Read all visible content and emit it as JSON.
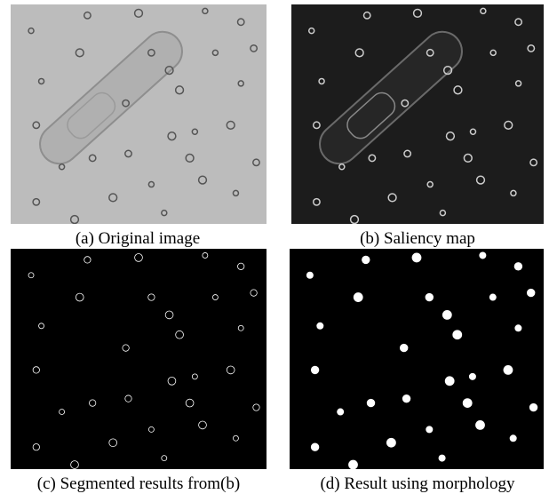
{
  "figure": {
    "panels": [
      {
        "caption": "(a) Original image"
      },
      {
        "caption": "(b) Saliency map"
      },
      {
        "caption": "(c) Segmented results from(b)"
      },
      {
        "caption": "(d) Result using morphology"
      }
    ]
  }
}
